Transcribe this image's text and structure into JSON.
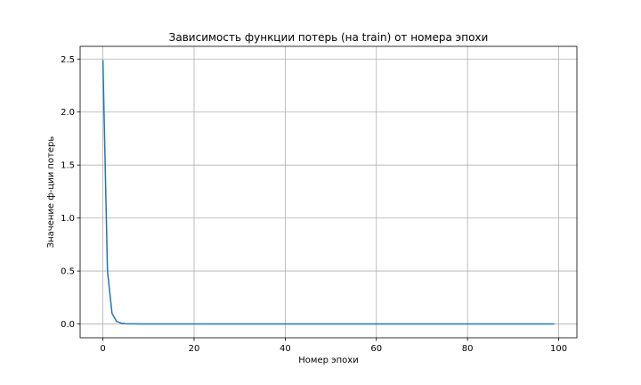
{
  "chart_data": {
    "type": "line",
    "title": "Зависимость функции потерь (на train) от номера эпохи",
    "xlabel": "Номер эпохи",
    "ylabel": "Значение ф-ции потерь",
    "xlim": [
      -5,
      104
    ],
    "ylim": [
      -0.13,
      2.62
    ],
    "xticks": [
      0,
      20,
      40,
      60,
      80,
      100
    ],
    "yticks": [
      0.0,
      0.5,
      1.0,
      1.5,
      2.0,
      2.5
    ],
    "xtick_labels": [
      "0",
      "20",
      "40",
      "60",
      "80",
      "100"
    ],
    "ytick_labels": [
      "0.0",
      "0.5",
      "1.0",
      "1.5",
      "2.0",
      "2.5"
    ],
    "grid": true,
    "series": [
      {
        "color": "#1f77b4",
        "x": [
          0,
          1,
          2,
          3,
          4,
          5,
          6,
          7,
          8,
          9,
          10,
          11,
          12,
          13,
          14,
          15,
          16,
          17,
          18,
          19,
          20,
          21,
          22,
          23,
          24,
          25,
          26,
          27,
          28,
          29,
          30,
          31,
          32,
          33,
          34,
          35,
          36,
          37,
          38,
          39,
          40,
          41,
          42,
          43,
          44,
          45,
          46,
          47,
          48,
          49,
          50,
          51,
          52,
          53,
          54,
          55,
          56,
          57,
          58,
          59,
          60,
          61,
          62,
          63,
          64,
          65,
          66,
          67,
          68,
          69,
          70,
          71,
          72,
          73,
          74,
          75,
          76,
          77,
          78,
          79,
          80,
          81,
          82,
          83,
          84,
          85,
          86,
          87,
          88,
          89,
          90,
          91,
          92,
          93,
          94,
          95,
          96,
          97,
          98,
          99
        ],
        "y": [
          2.49,
          0.5,
          0.1,
          0.025,
          0.008,
          0.003,
          0.0015,
          0.001,
          0.0007,
          0.0005,
          0.0004,
          0.0003,
          0.0003,
          0.0002,
          0.0002,
          0.0002,
          0.0002,
          0.0001,
          0.0001,
          0.0001,
          0.0001,
          0.0001,
          0.0001,
          0.0001,
          0.0001,
          0.0001,
          0.0001,
          0.0001,
          0.0001,
          0.0001,
          0.0001,
          0.0001,
          0.0001,
          0.0001,
          0.0001,
          0.0001,
          0.0001,
          0.0001,
          0.0001,
          0.0001,
          0.0001,
          0.0001,
          0.0001,
          0.0001,
          0.0001,
          0.0001,
          0.0001,
          0.0001,
          0.0001,
          0.0001,
          0.0001,
          0.0001,
          0.0001,
          0.0001,
          0.0001,
          0.0001,
          0.0001,
          0.0001,
          0.0001,
          0.0001,
          0.0001,
          0.0001,
          0.0001,
          0.0001,
          0.0001,
          0.0001,
          0.0001,
          0.0001,
          0.0001,
          0.0001,
          0.0001,
          0.0001,
          0.0001,
          0.0001,
          0.0001,
          0.0001,
          0.0001,
          0.0001,
          0.0001,
          0.0001,
          0.0001,
          0.0001,
          0.0001,
          0.0001,
          0.0001,
          0.0001,
          0.0001,
          0.0001,
          0.0001,
          0.0001,
          0.0001,
          0.0001,
          0.0001,
          0.0001,
          0.0001,
          0.0001,
          0.0001,
          0.0001,
          0.0001,
          0.0001
        ]
      }
    ]
  }
}
